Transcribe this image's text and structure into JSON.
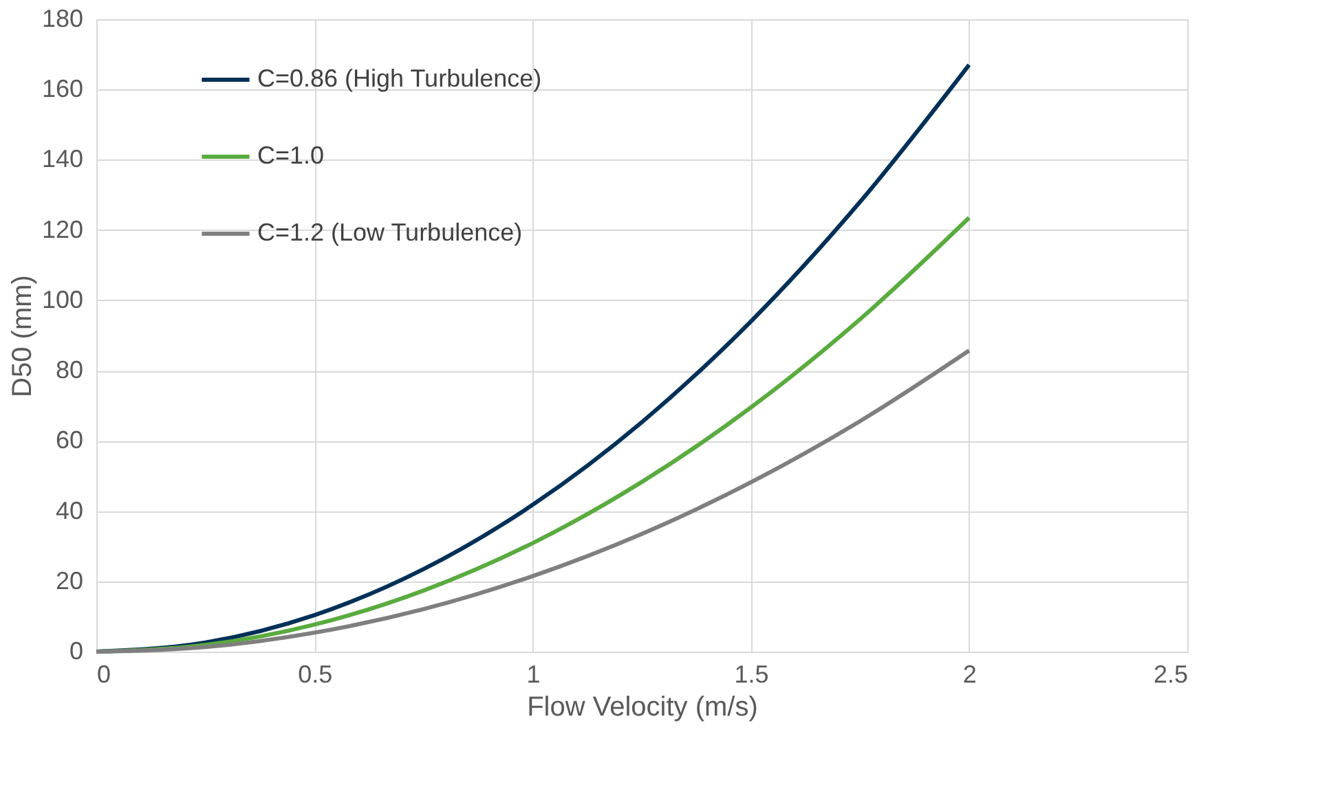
{
  "chart_data": {
    "type": "line",
    "xlabel": "Flow Velocity (m/s)",
    "ylabel": "D50 (mm)",
    "x": [
      0,
      0.25,
      0.5,
      0.75,
      1,
      1.25,
      1.5,
      1.75,
      2
    ],
    "series": [
      {
        "name": "C=0.86 (High Turbulence)",
        "color": "#003057",
        "values": [
          0,
          2.6,
          10.4,
          23.5,
          41.8,
          65.3,
          94,
          128,
          167
        ]
      },
      {
        "name": "C=1.0",
        "color": "#5aab3f",
        "values": [
          0,
          1.9,
          7.7,
          17.4,
          30.9,
          48.3,
          69.5,
          94.6,
          123.5
        ]
      },
      {
        "name": "C=1.2 (Low Turbulence)",
        "color": "#7f7f7f",
        "values": [
          0,
          1.3,
          5.4,
          12.1,
          21.5,
          33.5,
          48.2,
          65.6,
          85.7
        ]
      }
    ],
    "xlim": [
      0,
      2.5
    ],
    "xticks": [
      0,
      0.5,
      1,
      1.5,
      2,
      2.5
    ],
    "ylim": [
      0,
      180
    ],
    "yticks": [
      0,
      20,
      40,
      60,
      80,
      100,
      120,
      140,
      160,
      180
    ],
    "grid": true,
    "legend": "top left",
    "marker": "none",
    "line_style": "solid"
  }
}
